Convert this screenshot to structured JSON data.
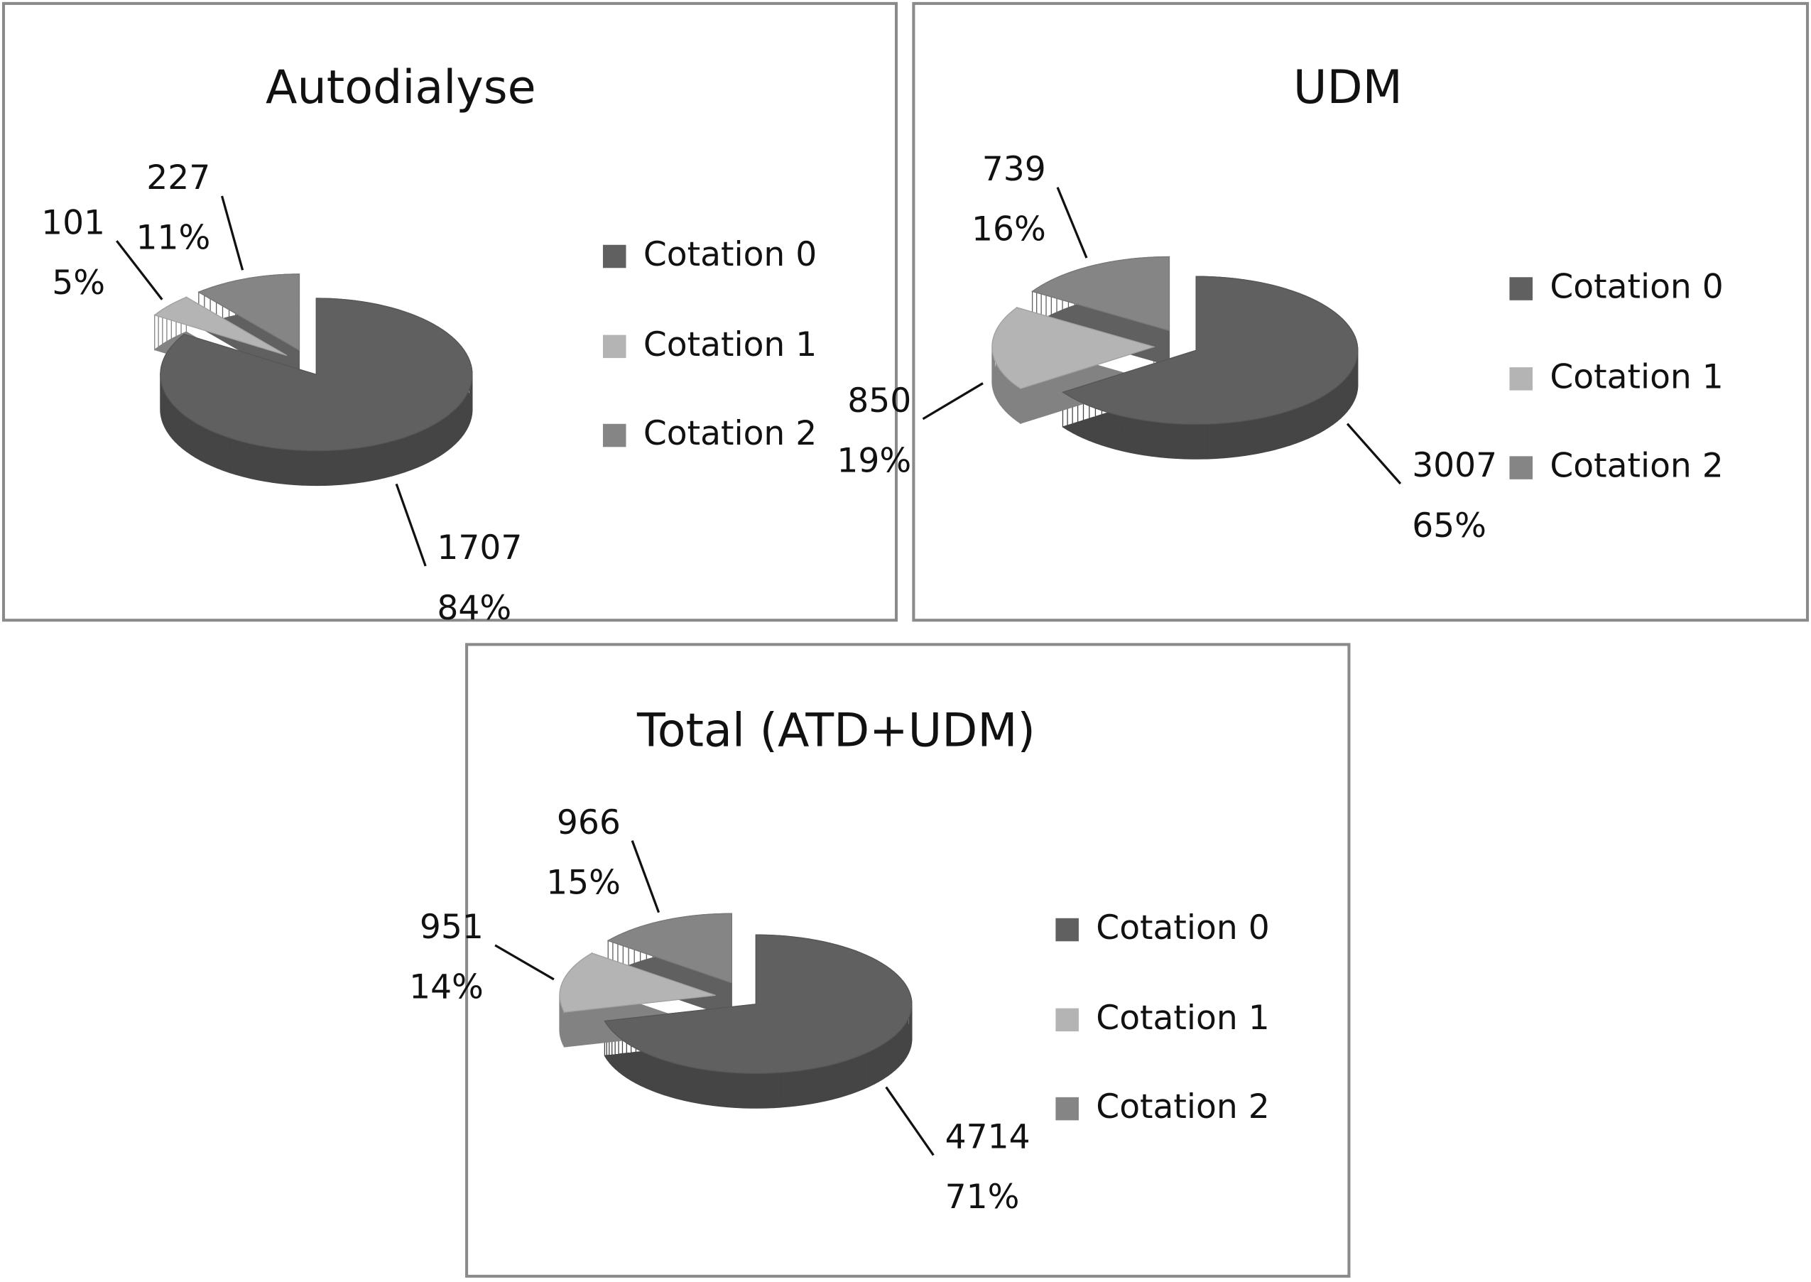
{
  "chart_data": [
    {
      "type": "pie",
      "title": "Autodialyse",
      "categories": [
        "Cotation 0",
        "Cotation 1",
        "Cotation 2"
      ],
      "values": [
        1707,
        101,
        227
      ],
      "percent_labels": [
        "84%",
        "5%",
        "11%"
      ],
      "colors": [
        "#606060",
        "#b4b4b4",
        "#858585"
      ]
    },
    {
      "type": "pie",
      "title": "UDM",
      "categories": [
        "Cotation 0",
        "Cotation 1",
        "Cotation 2"
      ],
      "values": [
        3007,
        850,
        739
      ],
      "percent_labels": [
        "65%",
        "19%",
        "16%"
      ],
      "colors": [
        "#606060",
        "#b4b4b4",
        "#858585"
      ]
    },
    {
      "type": "pie",
      "title": "Total (ATD+UDM)",
      "categories": [
        "Cotation 0",
        "Cotation 1",
        "Cotation 2"
      ],
      "values": [
        4714,
        951,
        966
      ],
      "percent_labels": [
        "71%",
        "14%",
        "15%"
      ],
      "colors": [
        "#606060",
        "#b4b4b4",
        "#858585"
      ]
    }
  ]
}
